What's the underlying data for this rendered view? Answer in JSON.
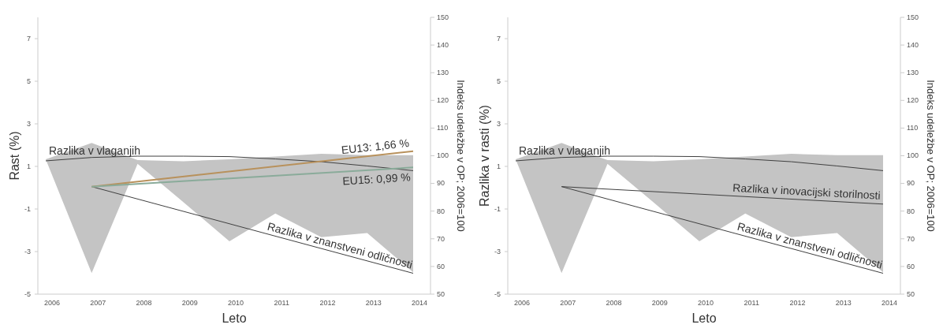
{
  "chart_data": [
    {
      "type": "line",
      "xlabel": "Leto",
      "ylabel": "Rast (%)",
      "y2label": "Indeks udeležbe v OP; 2006=100",
      "categories": [
        "2006",
        "2007",
        "2008",
        "2009",
        "2010",
        "2011",
        "2012",
        "2013",
        "2014"
      ],
      "ylim": [
        -5,
        8
      ],
      "yticks": [
        -5,
        -3,
        -1,
        1,
        3,
        5,
        7
      ],
      "y2lim": [
        50,
        150
      ],
      "y2ticks": [
        50,
        60,
        70,
        80,
        90,
        100,
        110,
        120,
        130,
        140,
        150
      ],
      "grid": false,
      "marker": "none",
      "line_style": "solid",
      "series": [
        {
          "type": "area",
          "axis": "y2",
          "color": "#c4c4c4",
          "values": [
            98.7,
            104.6,
            98.4,
            98,
            98.7,
            99.7,
            100.7,
            100.2,
            100.2
          ]
        },
        {
          "type": "area",
          "axis": "y2",
          "color": "#ffffff",
          "values": [
            98.7,
            57.6,
            97.1,
            83.2,
            69.1,
            79.1,
            70.6,
            72.1,
            57.9
          ]
        },
        {
          "name": "Razlika  v vlaganjih",
          "color": "#404040",
          "values": [
            1.26,
            1.42,
            1.48,
            1.48,
            1.46,
            1.35,
            1.22,
            1.02,
            0.8
          ]
        },
        {
          "name": "Razlika  v znanstveni  odličnosti",
          "color": "#404040",
          "values": [
            null,
            0.05,
            null,
            null,
            null,
            null,
            null,
            null,
            -4.02
          ]
        },
        {
          "name": "EU13: 1,66 %",
          "color": "#b8915c",
          "values": [
            null,
            0.05,
            null,
            null,
            null,
            null,
            null,
            null,
            1.71
          ]
        },
        {
          "name": "EU15: 0,99 %",
          "color": "#8aab9a",
          "values": [
            null,
            0.05,
            null,
            null,
            null,
            null,
            null,
            null,
            0.95
          ]
        }
      ]
    },
    {
      "type": "line",
      "xlabel": "Leto",
      "ylabel": "Razlika v rasti (%)",
      "y2label": "Indeks udeležbe v OP; 2006=100",
      "categories": [
        "2006",
        "2007",
        "2008",
        "2009",
        "2010",
        "2011",
        "2012",
        "2013",
        "2014"
      ],
      "ylim": [
        -5,
        8
      ],
      "yticks": [
        -5,
        -3,
        -1,
        1,
        3,
        5,
        7
      ],
      "y2lim": [
        50,
        150
      ],
      "y2ticks": [
        50,
        60,
        70,
        80,
        90,
        100,
        110,
        120,
        130,
        140,
        150
      ],
      "grid": false,
      "marker": "none",
      "line_style": "solid",
      "series": [
        {
          "type": "area",
          "axis": "y2",
          "color": "#c4c4c4",
          "values": [
            98.7,
            104.6,
            98.4,
            98,
            98.7,
            99.7,
            100.7,
            100.2,
            100.2
          ]
        },
        {
          "type": "area",
          "axis": "y2",
          "color": "#ffffff",
          "values": [
            98.7,
            57.6,
            97.1,
            83.2,
            69.1,
            79.1,
            70.6,
            72.1,
            57.9
          ]
        },
        {
          "name": "Razlika  v vlaganjih",
          "color": "#404040",
          "values": [
            1.26,
            1.42,
            1.48,
            1.48,
            1.46,
            1.35,
            1.22,
            1.02,
            0.8
          ]
        },
        {
          "name": "Razlika  v inovacijski storilnosti",
          "color": "#404040",
          "values": [
            null,
            0.05,
            null,
            null,
            null,
            null,
            null,
            null,
            -0.77
          ]
        },
        {
          "name": "Razlika  v znanstveni  odličnosti",
          "color": "#404040",
          "values": [
            null,
            0.05,
            null,
            null,
            null,
            null,
            null,
            null,
            -4.02
          ]
        }
      ]
    }
  ]
}
